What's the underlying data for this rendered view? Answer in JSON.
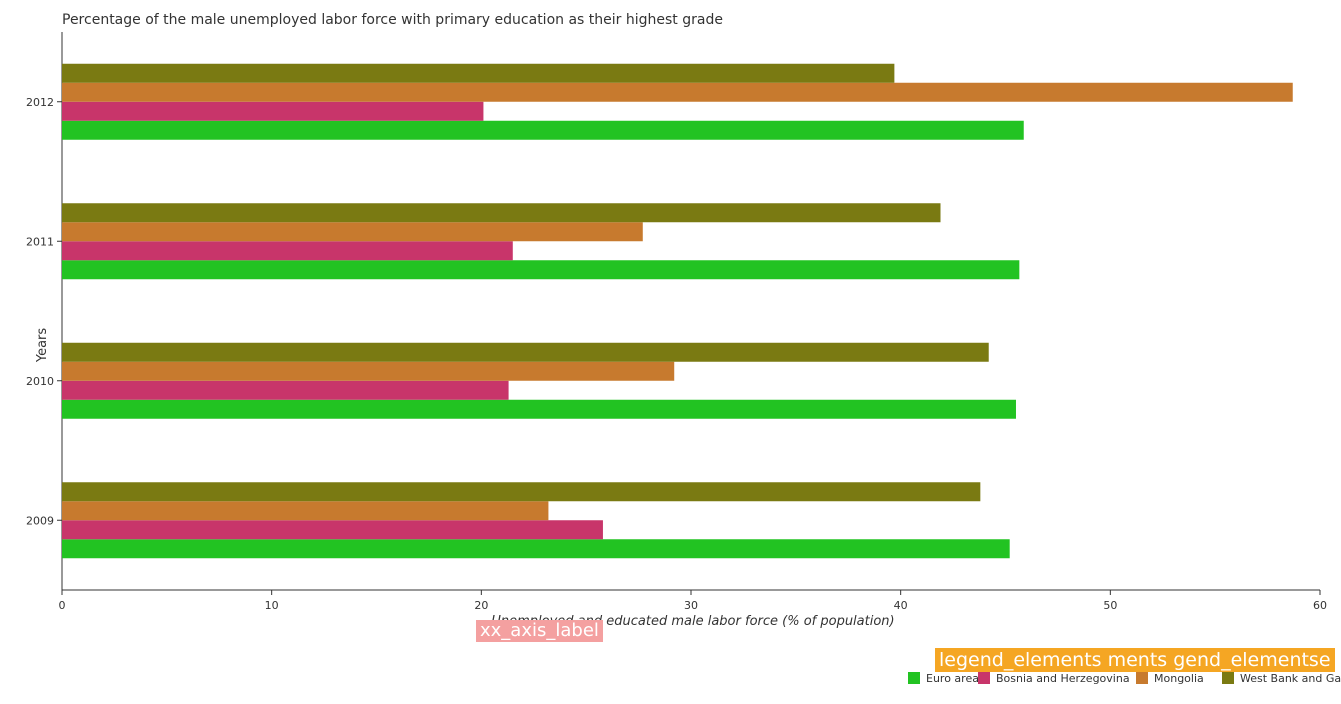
{
  "chart_data": {
    "type": "bar",
    "orientation": "horizontal",
    "title": "Percentage of the male unemployed labor force with primary education as their highest grade",
    "xlabel": "Unemployed and educated male labor force (% of population)",
    "ylabel": "Years",
    "categories": [
      "2009",
      "2010",
      "2011",
      "2012"
    ],
    "xlim": [
      0,
      60
    ],
    "xticks": [
      0,
      10,
      20,
      30,
      40,
      50,
      60
    ],
    "grid": false,
    "legend_position": "bottom-right",
    "series": [
      {
        "name": "Euro area",
        "color": "#22c322",
        "values": [
          45.2,
          45.5,
          45.66,
          45.87
        ]
      },
      {
        "name": "Bosnia and Herzegovina",
        "color": "#c8356a",
        "values": [
          25.8,
          21.3,
          21.5,
          20.1
        ]
      },
      {
        "name": "Mongolia",
        "color": "#c77a2e",
        "values": [
          23.2,
          29.2,
          27.7,
          58.7
        ]
      },
      {
        "name": "West Bank and Gaza",
        "color": "#7a7a12",
        "values": [
          43.8,
          44.2,
          41.9,
          39.7
        ]
      }
    ]
  },
  "overlays": {
    "xaxis_placeholder": "xx_axis_label",
    "legend_placeholder": "legend_elements ments gend_elementse"
  }
}
